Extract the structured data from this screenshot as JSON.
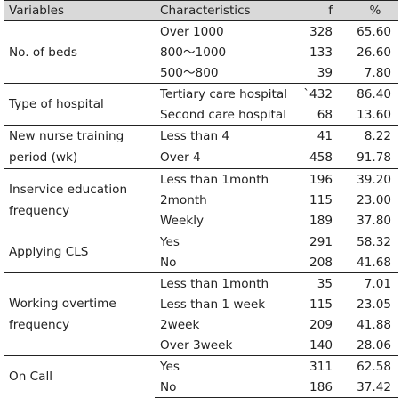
{
  "header": {
    "variables": "Variables",
    "characteristics": "Characteristics",
    "f": "f",
    "percent": "%"
  },
  "groups": [
    {
      "variable": "No. of beds",
      "rows": [
        {
          "characteristic": "Over 1000",
          "f": "328",
          "percent": "65.60"
        },
        {
          "characteristic": "800～1000",
          "f": "133",
          "percent": "26.60"
        },
        {
          "characteristic": "500～800",
          "f": "39",
          "percent": "7.80"
        }
      ]
    },
    {
      "variable": "Type of hospital",
      "rows": [
        {
          "characteristic": "Tertiary care hospital",
          "f": "`432",
          "percent": "86.40"
        },
        {
          "characteristic": "Second care hospital",
          "f": "68",
          "percent": "13.60"
        }
      ]
    },
    {
      "variable": "New nurse training period (wk)",
      "rows": [
        {
          "characteristic": "Less than 4",
          "f": "41",
          "percent": "8.22"
        },
        {
          "characteristic": "Over 4",
          "f": "458",
          "percent": "91.78"
        }
      ]
    },
    {
      "variable": "Inservice education frequency",
      "rows": [
        {
          "characteristic": "Less than 1month",
          "f": "196",
          "percent": "39.20"
        },
        {
          "characteristic": "2month",
          "f": "115",
          "percent": "23.00"
        },
        {
          "characteristic": "Weekly",
          "f": "189",
          "percent": "37.80"
        }
      ]
    },
    {
      "variable": "Applying CLS",
      "rows": [
        {
          "characteristic": "Yes",
          "f": "291",
          "percent": "58.32"
        },
        {
          "characteristic": "No",
          "f": "208",
          "percent": "41.68"
        }
      ]
    },
    {
      "variable": "Working overtime frequency",
      "rows": [
        {
          "characteristic": "Less than 1month",
          "f": "35",
          "percent": "7.01"
        },
        {
          "characteristic": "Less than 1 week",
          "f": "115",
          "percent": "23.05"
        },
        {
          "characteristic": "2week",
          "f": "209",
          "percent": "41.88"
        },
        {
          "characteristic": "Over 3week",
          "f": "140",
          "percent": "28.06"
        }
      ]
    },
    {
      "variable": "On Call",
      "rows": [
        {
          "characteristic": "Yes",
          "f": "311",
          "percent": "62.58"
        },
        {
          "characteristic": "No",
          "f": "186",
          "percent": "37.42"
        }
      ]
    }
  ]
}
